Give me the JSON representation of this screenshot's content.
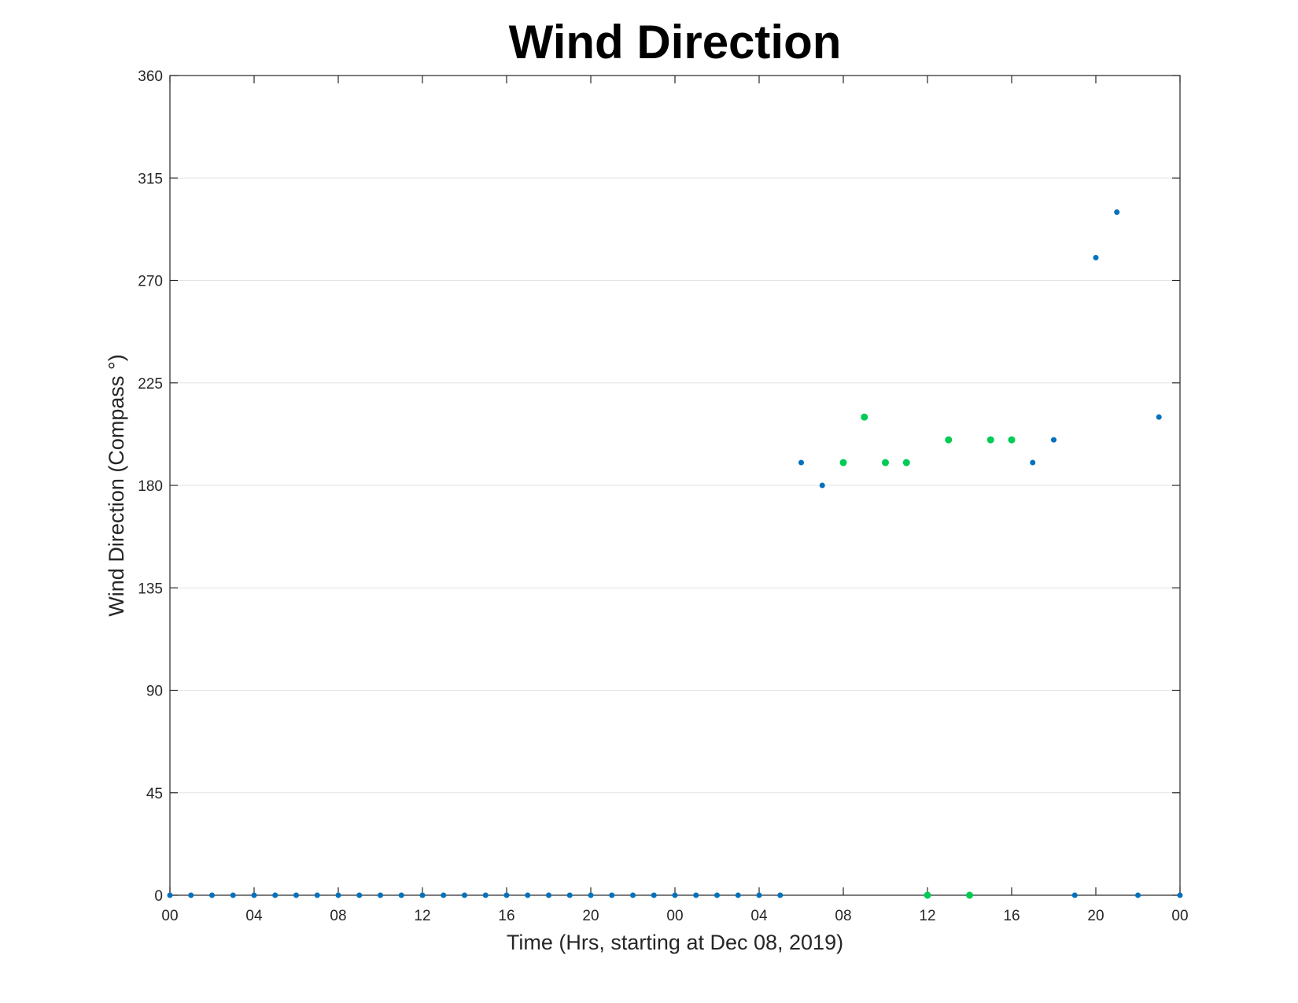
{
  "chart_data": {
    "type": "scatter",
    "title": "Wind Direction",
    "xlabel": "Time (Hrs, starting at Dec 08, 2019)",
    "ylabel": "Wind Direction (Compass °)",
    "xlim": [
      0,
      48
    ],
    "ylim": [
      0,
      360
    ],
    "xticks": [
      0,
      4,
      8,
      12,
      16,
      20,
      24,
      28,
      32,
      36,
      40,
      44,
      48
    ],
    "xtick_labels": [
      "00",
      "04",
      "08",
      "12",
      "16",
      "20",
      "00",
      "04",
      "08",
      "12",
      "16",
      "20",
      "00"
    ],
    "yticks": [
      0,
      45,
      90,
      135,
      180,
      225,
      270,
      315,
      360
    ],
    "ytick_labels": [
      "0",
      "45",
      "90",
      "135",
      "180",
      "225",
      "270",
      "315",
      "360"
    ],
    "grid": true,
    "colors": {
      "blue": "#0072bd",
      "green": "#00cc55"
    },
    "series": [
      {
        "color": "#0072bd",
        "points": [
          [
            0,
            0
          ],
          [
            1,
            0
          ],
          [
            2,
            0
          ],
          [
            3,
            0
          ],
          [
            4,
            0
          ],
          [
            5,
            0
          ],
          [
            6,
            0
          ],
          [
            7,
            0
          ],
          [
            8,
            0
          ],
          [
            9,
            0
          ],
          [
            10,
            0
          ],
          [
            11,
            0
          ],
          [
            12,
            0
          ],
          [
            13,
            0
          ],
          [
            14,
            0
          ],
          [
            15,
            0
          ],
          [
            16,
            0
          ],
          [
            17,
            0
          ],
          [
            18,
            0
          ],
          [
            19,
            0
          ],
          [
            20,
            0
          ],
          [
            21,
            0
          ],
          [
            22,
            0
          ],
          [
            23,
            0
          ],
          [
            24,
            0
          ],
          [
            25,
            0
          ],
          [
            26,
            0
          ],
          [
            27,
            0
          ],
          [
            28,
            0
          ],
          [
            29,
            0
          ],
          [
            30,
            190
          ],
          [
            31,
            180
          ],
          [
            41,
            190
          ],
          [
            42,
            200
          ],
          [
            43,
            0
          ],
          [
            44,
            280
          ],
          [
            45,
            300
          ],
          [
            46,
            0
          ],
          [
            47,
            210
          ],
          [
            48,
            0
          ]
        ]
      },
      {
        "color": "#00cc55",
        "points": [
          [
            32,
            190
          ],
          [
            33,
            210
          ],
          [
            34,
            190
          ],
          [
            35,
            190
          ],
          [
            36,
            0
          ],
          [
            37,
            200
          ],
          [
            38,
            0
          ],
          [
            39,
            200
          ],
          [
            40,
            200
          ]
        ]
      }
    ]
  }
}
